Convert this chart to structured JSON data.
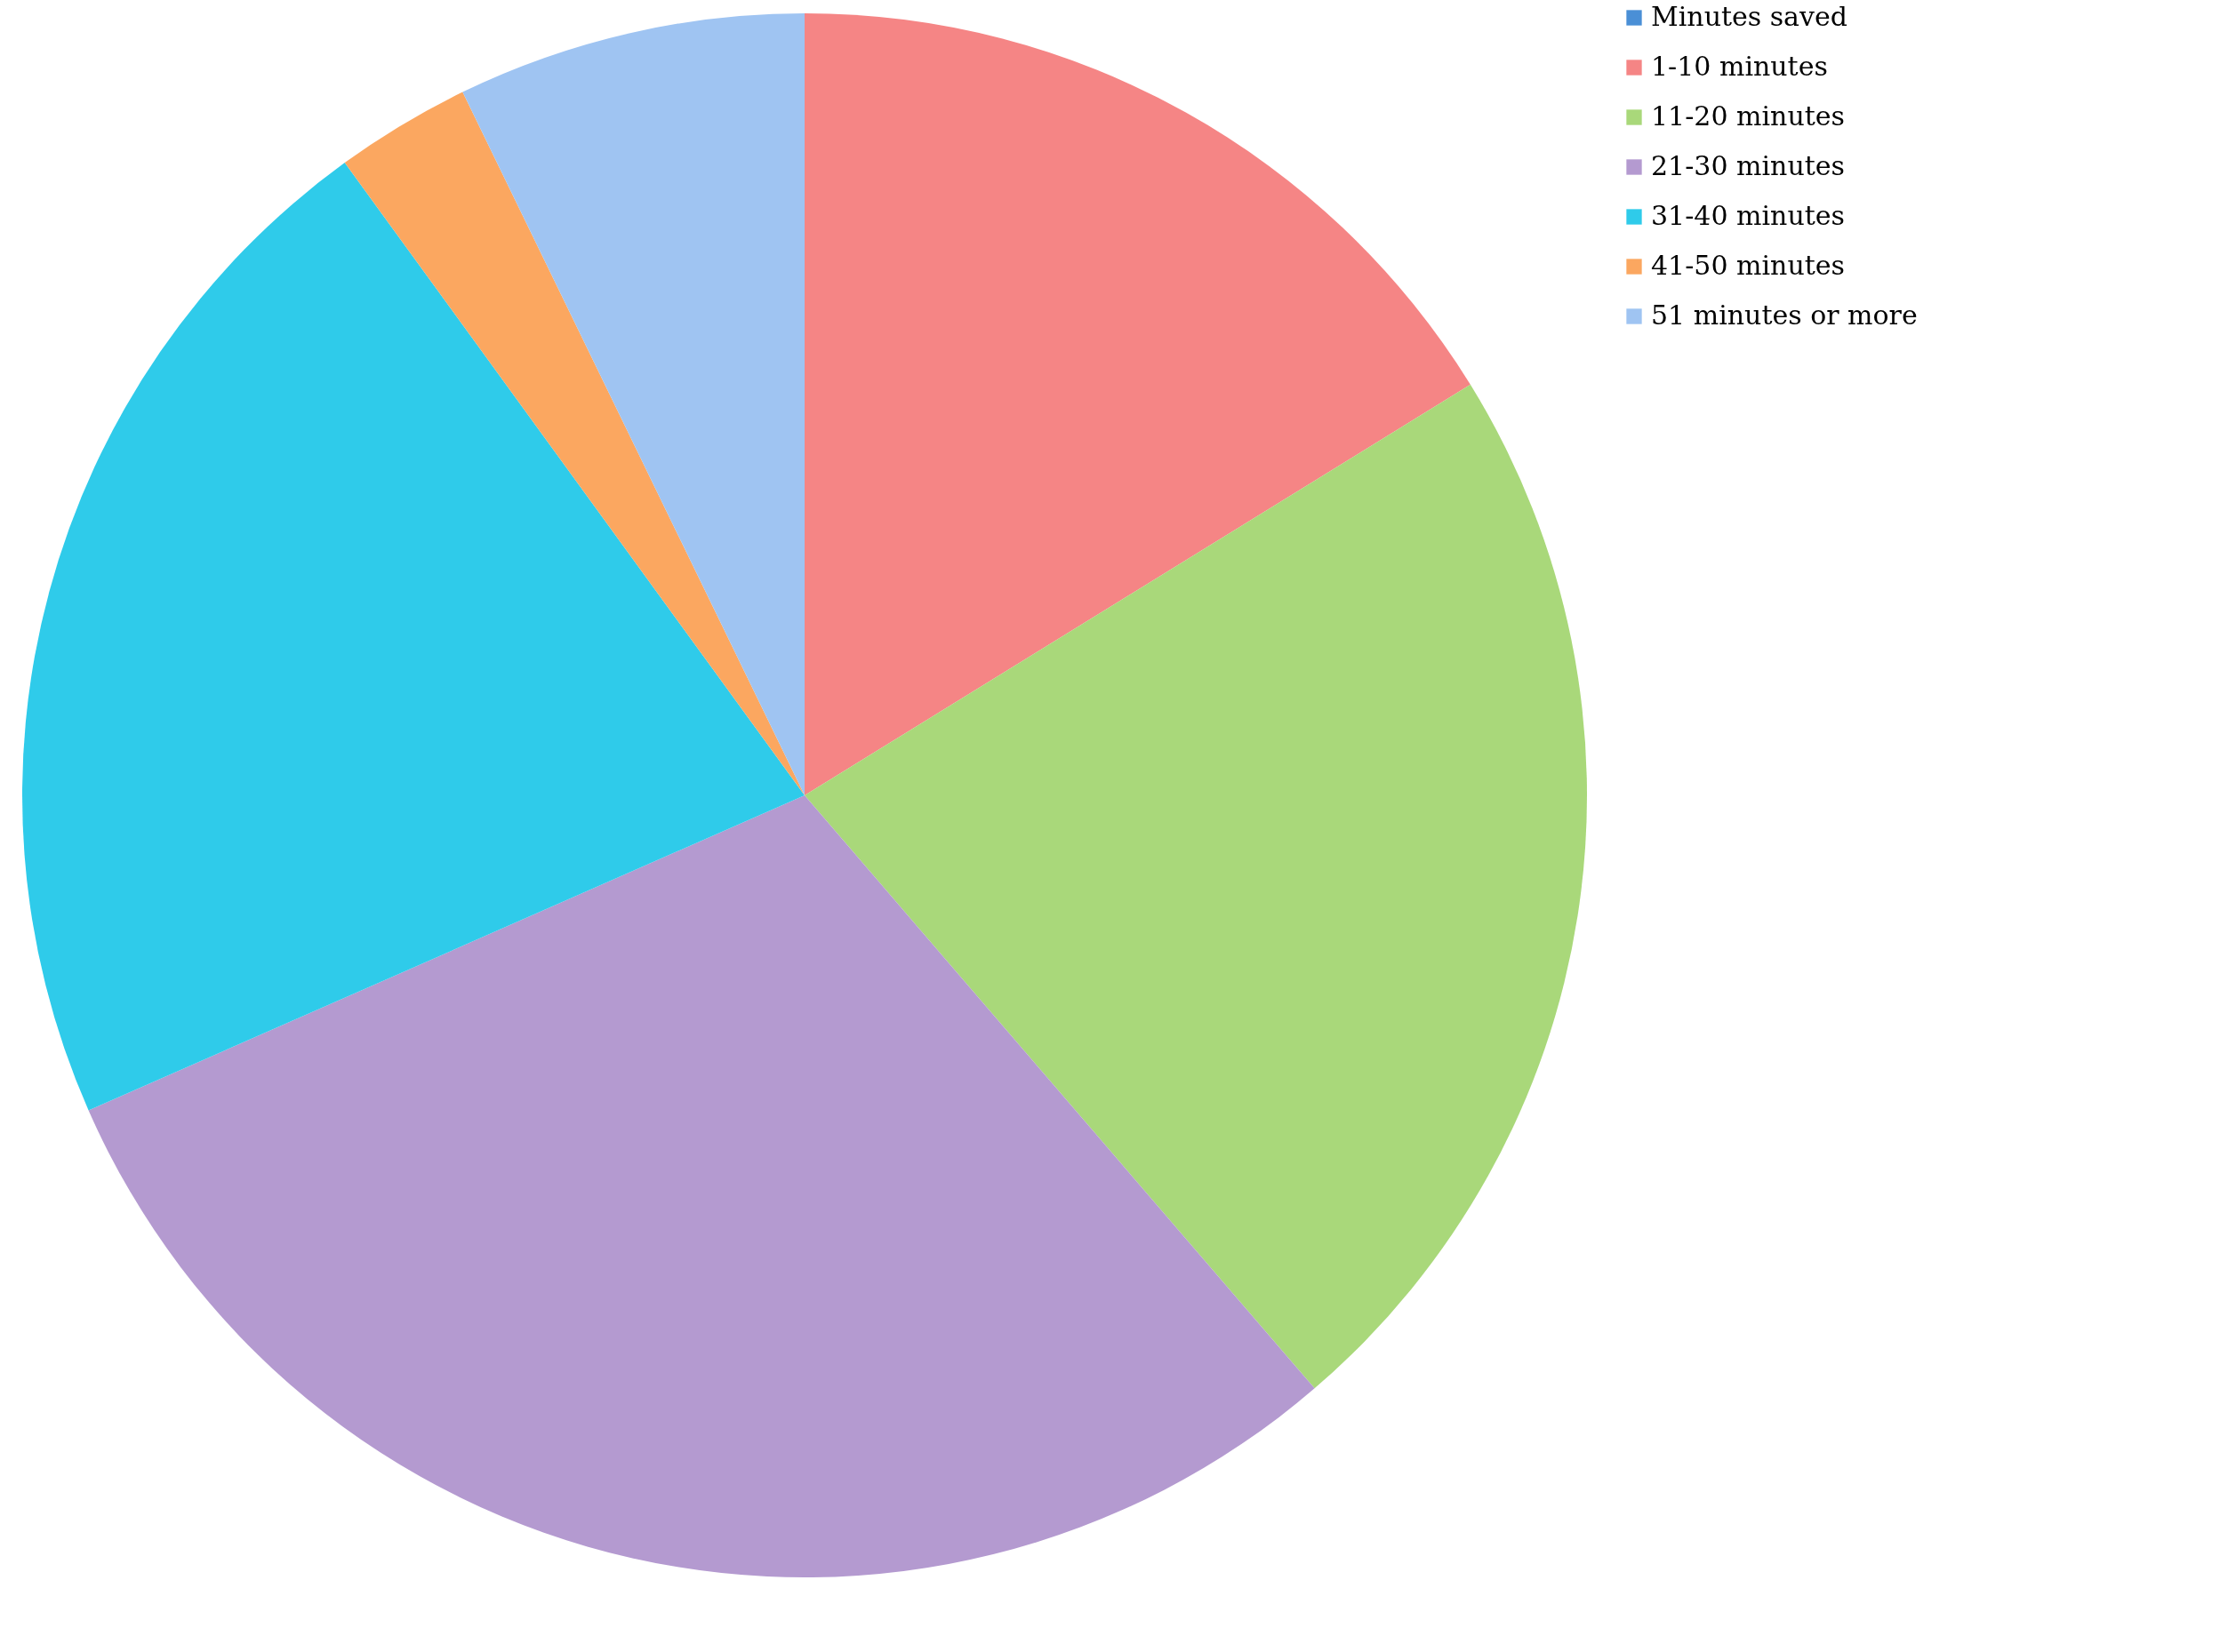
{
  "chart_data": {
    "type": "pie",
    "categories": [
      "Minutes saved",
      "1-10 minutes",
      "11-20 minutes",
      "21-30 minutes",
      "31-40 minutes",
      "41-50 minutes",
      "51 minutes or more"
    ],
    "values": [
      0,
      16.2,
      22.5,
      29.7,
      21.6,
      2.8,
      7.2
    ],
    "colors": [
      "#4a8fd6",
      "#f58585",
      "#a9d87a",
      "#b49ad0",
      "#2fcbea",
      "#fba760",
      "#9fc4f2"
    ],
    "legend": "right"
  }
}
